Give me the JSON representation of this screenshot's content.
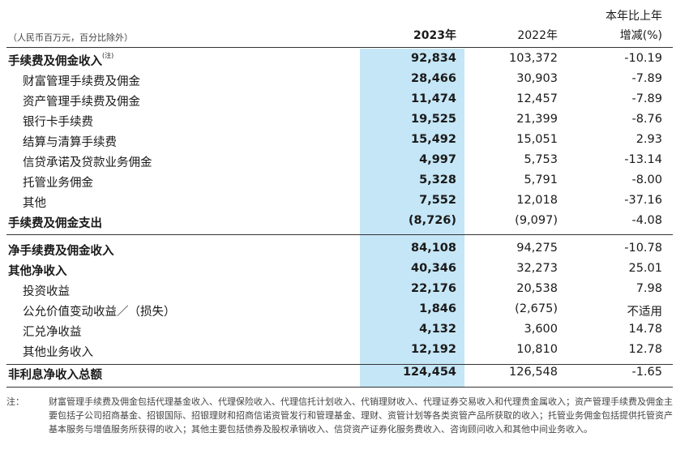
{
  "header": {
    "unit": "（人民币百万元，百分比除外）",
    "col_2023": "2023年",
    "col_2022": "2022年",
    "col_change_line1": "本年比上年",
    "col_change_line2": "增减(%)"
  },
  "rows": [
    {
      "label": "手续费及佣金收入",
      "note": "(注)",
      "v2023": "92,834",
      "v2022": "103,372",
      "change": "-10.19"
    },
    {
      "label": "财富管理手续费及佣金",
      "v2023": "28,466",
      "v2022": "30,903",
      "change": "-7.89"
    },
    {
      "label": "资产管理手续费及佣金",
      "v2023": "11,474",
      "v2022": "12,457",
      "change": "-7.89"
    },
    {
      "label": "银行卡手续费",
      "v2023": "19,525",
      "v2022": "21,399",
      "change": "-8.76"
    },
    {
      "label": "结算与清算手续费",
      "v2023": "15,492",
      "v2022": "15,051",
      "change": "2.93"
    },
    {
      "label": "信贷承诺及贷款业务佣金",
      "v2023": "4,997",
      "v2022": "5,753",
      "change": "-13.14"
    },
    {
      "label": "托管业务佣金",
      "v2023": "5,328",
      "v2022": "5,791",
      "change": "-8.00"
    },
    {
      "label": "其他",
      "v2023": "7,552",
      "v2022": "12,018",
      "change": "-37.16"
    },
    {
      "label": "手续费及佣金支出",
      "v2023": "(8,726)",
      "v2022": "(9,097)",
      "change": "-4.08"
    },
    {
      "label": "净手续费及佣金收入",
      "v2023": "84,108",
      "v2022": "94,275",
      "change": "-10.78"
    },
    {
      "label": "其他净收入",
      "v2023": "40,346",
      "v2022": "32,273",
      "change": "25.01"
    },
    {
      "label": "投资收益",
      "v2023": "22,176",
      "v2022": "20,538",
      "change": "7.98"
    },
    {
      "label": "公允价值变动收益／（损失）",
      "v2023": "1,846",
      "v2022": "(2,675)",
      "change": "不适用"
    },
    {
      "label": "汇兑净收益",
      "v2023": "4,132",
      "v2022": "3,600",
      "change": "14.78"
    },
    {
      "label": "其他业务收入",
      "v2023": "12,192",
      "v2022": "10,810",
      "change": "12.78"
    },
    {
      "label": "非利息净收入总额",
      "v2023": "124,454",
      "v2022": "126,548",
      "change": "-1.65"
    }
  ],
  "notes": {
    "tag": "注：",
    "text": "财富管理手续费及佣金包括代理基金收入、代理保险收入、代理信托计划收入、代销理财收入、代理证券交易收入和代理贵金属收入；资产管理手续费及佣金主要包括子公司招商基金、招银国际、招银理财和招商信诺资管发行和管理基金、理财、资管计划等各类资管产品所获取的收入；托管业务佣金包括提供托管资产基本服务与增值服务所获得的收入；其他主要包括债券及股权承销收入、信贷资产证券化服务费收入、咨询顾问收入和其他中间业务收入。"
  }
}
